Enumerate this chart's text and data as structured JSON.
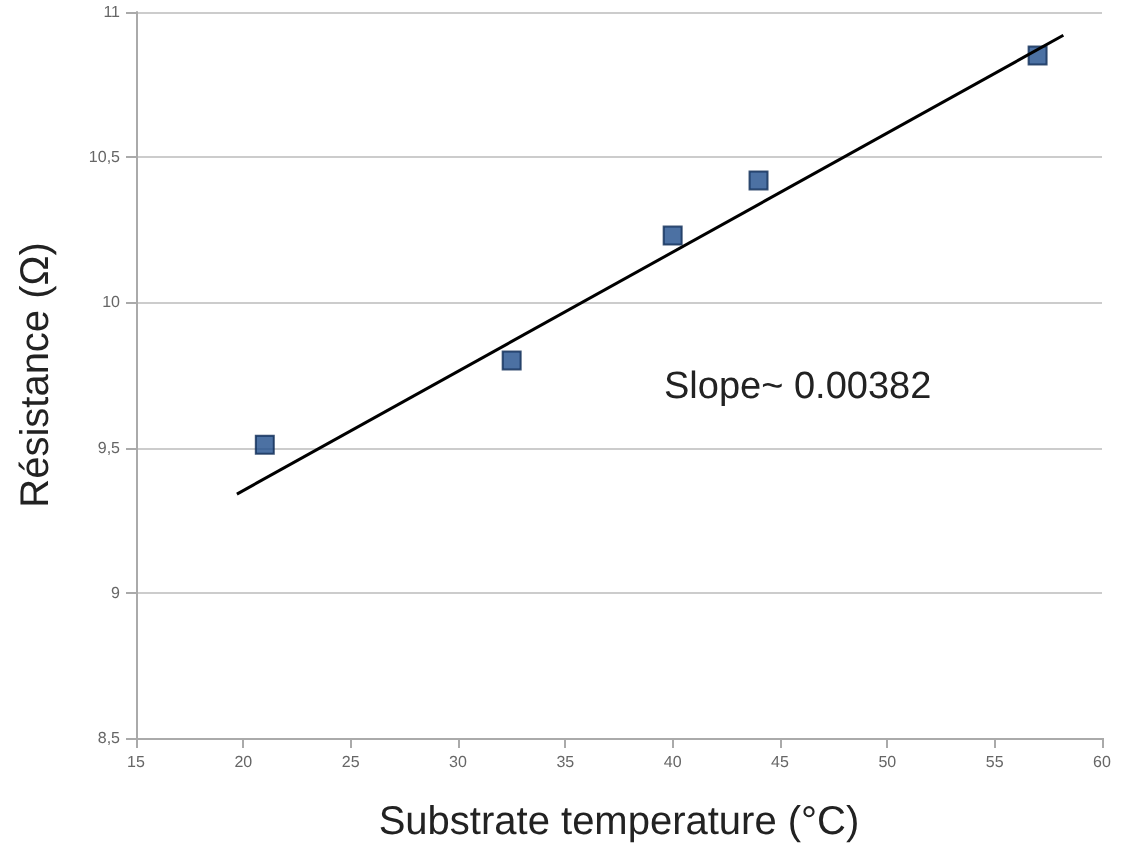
{
  "chart_data": {
    "type": "scatter",
    "xlabel": "Substrate temperature (°C)",
    "ylabel": "Résistance (Ω)",
    "annotations": [
      "Slope~ 0.00382"
    ],
    "series": [
      {
        "color": "#1f4e8c",
        "x": [
          21,
          32.5,
          40,
          44,
          57
        ],
        "values": [
          9.51,
          9.8,
          10.23,
          10.42,
          10.85
        ],
        "marker": "square"
      },
      {
        "type": "line",
        "color": "#000000",
        "x": [
          19.7,
          58.2
        ],
        "values": [
          9.34,
          10.92
        ],
        "marker": "none"
      }
    ],
    "xlim": [
      15,
      60
    ],
    "xticks": [
      15,
      20,
      25,
      30,
      35,
      40,
      45,
      50,
      55,
      60
    ],
    "ylim": [
      8.5,
      11
    ],
    "yticks": [
      {
        "value": 8.5,
        "label": "8,5"
      },
      9,
      {
        "value": 9.5,
        "label": "9,5"
      },
      10,
      {
        "value": 10.5,
        "label": "10,5"
      },
      11
    ],
    "grid": "y"
  }
}
